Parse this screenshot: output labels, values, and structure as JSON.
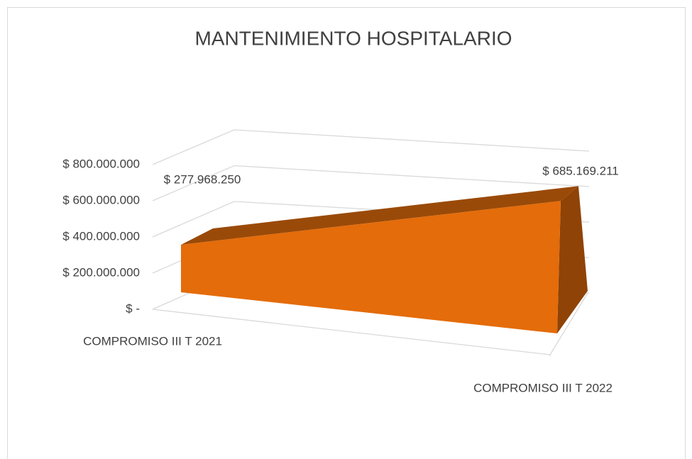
{
  "chart_data": {
    "type": "area",
    "title": "MANTENIMIENTO HOSPITALARIO",
    "categories": [
      "COMPROMISO III T 2021",
      "COMPROMISO III T 2022"
    ],
    "values": [
      277968250,
      685169211
    ],
    "value_labels": [
      "$ 277.968.250",
      "$ 685.169.211"
    ],
    "color": "#e46c0a",
    "ylim": [
      0,
      800000000
    ],
    "yticks": [
      {
        "value": 0,
        "label": "$ -"
      },
      {
        "value": 200000000,
        "label": "$ 200.000.000"
      },
      {
        "value": 400000000,
        "label": "$ 400.000.000"
      },
      {
        "value": 600000000,
        "label": "$ 600.000.000"
      },
      {
        "value": 800000000,
        "label": "$ 800.000.000"
      }
    ],
    "grid": true
  }
}
